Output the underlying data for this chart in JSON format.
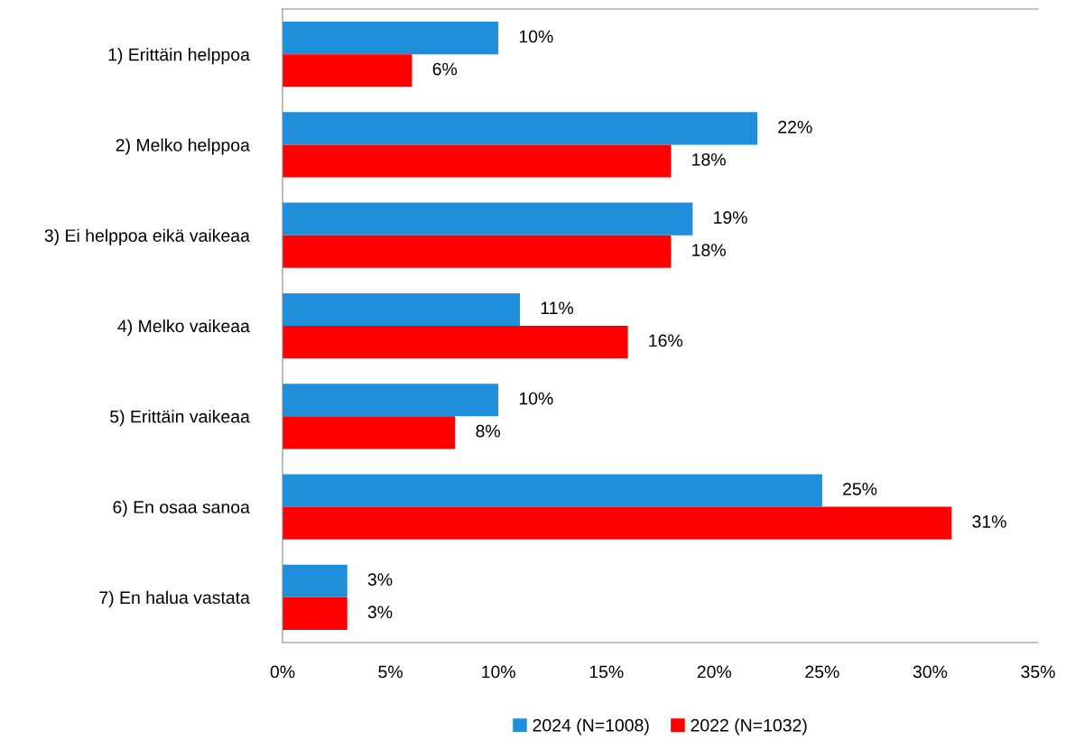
{
  "chart_data": {
    "type": "bar",
    "orientation": "horizontal",
    "categories": [
      "1) Erittäin helppoa",
      "2) Melko helppoa",
      "3) Ei helppoa eikä vaikeaa",
      "4) Melko vaikeaa",
      "5) Erittäin vaikeaa",
      "6) En osaa sanoa",
      "7) En halua vastata"
    ],
    "series": [
      {
        "name": "2024 (N=1008)",
        "color": "#1f8fdc",
        "values": [
          10,
          22,
          19,
          11,
          10,
          25,
          3
        ],
        "value_labels": [
          "10%",
          "22%",
          "19%",
          "11%",
          "10%",
          "25%",
          "3%"
        ]
      },
      {
        "name": "2022 (N=1032)",
        "color": "#ff0000",
        "values": [
          6,
          18,
          18,
          16,
          8,
          31,
          3
        ],
        "value_labels": [
          "6%",
          "18%",
          "18%",
          "16%",
          "8%",
          "31%",
          "3%"
        ]
      }
    ],
    "xlim": [
      0,
      35
    ],
    "xticks": [
      {
        "value": 0,
        "label": "0%"
      },
      {
        "value": 5,
        "label": "5%"
      },
      {
        "value": 10,
        "label": "10%"
      },
      {
        "value": 15,
        "label": "15%"
      },
      {
        "value": 20,
        "label": "20%"
      },
      {
        "value": 25,
        "label": "25%"
      },
      {
        "value": 30,
        "label": "30%"
      },
      {
        "value": 35,
        "label": "35%"
      }
    ],
    "grid": false,
    "legend": "bottom"
  }
}
